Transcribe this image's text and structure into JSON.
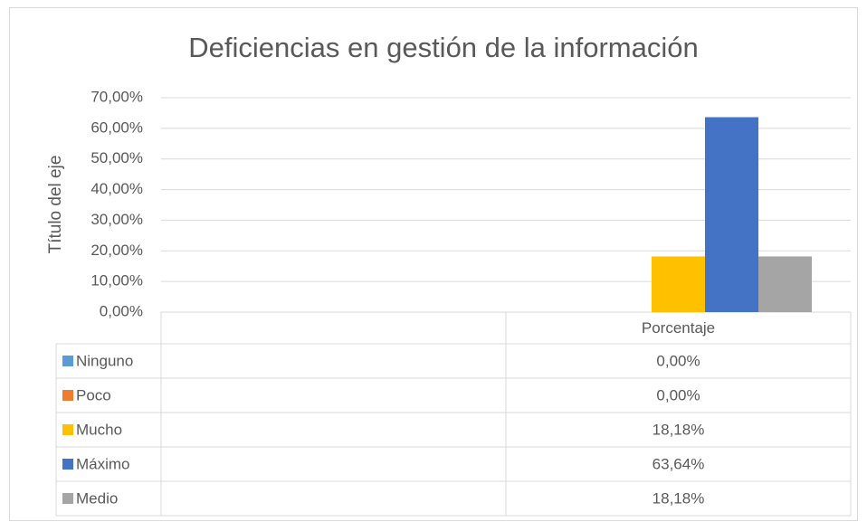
{
  "chart_data": {
    "type": "bar",
    "title": "Deficiencias en gestión de la información",
    "y_axis_label": "Título del eje",
    "categories": [
      null,
      "Porcentaje"
    ],
    "series": [
      {
        "name": "Ninguno",
        "color": "#5b9bd5",
        "values": [
          null,
          0
        ],
        "value_labels": [
          null,
          "0,00%"
        ]
      },
      {
        "name": "Poco",
        "color": "#ed7d31",
        "values": [
          null,
          0
        ],
        "value_labels": [
          null,
          "0,00%"
        ]
      },
      {
        "name": "Mucho",
        "color": "#ffc000",
        "values": [
          null,
          18.18
        ],
        "value_labels": [
          null,
          "18,18%"
        ]
      },
      {
        "name": "Máximo",
        "color": "#4472c4",
        "values": [
          null,
          63.64
        ],
        "value_labels": [
          null,
          "63,64%"
        ]
      },
      {
        "name": "Medio",
        "color": "#a5a5a5",
        "values": [
          null,
          18.18
        ],
        "value_labels": [
          null,
          "18,18%"
        ]
      }
    ],
    "ylim": [
      0,
      70
    ],
    "yticks": [
      {
        "value": 0,
        "label": "0,00%"
      },
      {
        "value": 10,
        "label": "10,00%"
      },
      {
        "value": 20,
        "label": "20,00%"
      },
      {
        "value": 30,
        "label": "30,00%"
      },
      {
        "value": 40,
        "label": "40,00%"
      },
      {
        "value": 50,
        "label": "50,00%"
      },
      {
        "value": 60,
        "label": "60,00%"
      },
      {
        "value": 70,
        "label": "70,00%"
      }
    ],
    "grid": true
  }
}
